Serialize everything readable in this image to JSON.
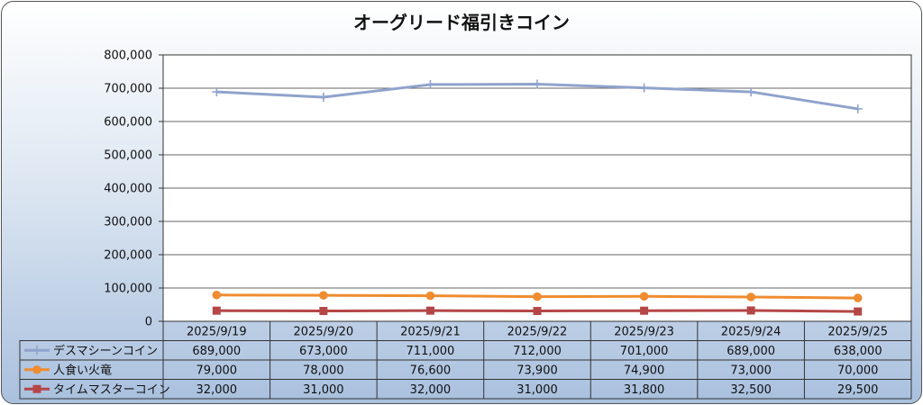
{
  "chart_data": {
    "type": "line",
    "title": "オーグリード福引きコイン",
    "categories": [
      "2025/9/19",
      "2025/9/20",
      "2025/9/21",
      "2025/9/22",
      "2025/9/23",
      "2025/9/24",
      "2025/9/25"
    ],
    "yticks": [
      "0",
      "100,000",
      "200,000",
      "300,000",
      "400,000",
      "500,000",
      "600,000",
      "700,000",
      "800,000"
    ],
    "ylim": [
      0,
      800000
    ],
    "grid": true,
    "legend": "data-table",
    "series": [
      {
        "name": "デスマシーンコイン",
        "color": "#8fa3cc",
        "marker": "plus",
        "values": [
          689000,
          673000,
          711000,
          712000,
          701000,
          689000,
          638000
        ],
        "labels": [
          "689,000",
          "673,000",
          "711,000",
          "712,000",
          "701,000",
          "689,000",
          "638,000"
        ]
      },
      {
        "name": "人食い火竜",
        "color": "#ef8c30",
        "marker": "circle",
        "values": [
          79000,
          78000,
          76600,
          73900,
          74900,
          73000,
          70000
        ],
        "labels": [
          "79,000",
          "78,000",
          "76,600",
          "73,900",
          "74,900",
          "73,000",
          "70,000"
        ]
      },
      {
        "name": "タイムマスターコイン",
        "color": "#b54646",
        "marker": "square",
        "values": [
          32000,
          31000,
          32000,
          31000,
          31800,
          32500,
          29500
        ],
        "labels": [
          "32,000",
          "31,000",
          "32,000",
          "31,000",
          "31,800",
          "32,500",
          "29,500"
        ]
      }
    ]
  }
}
